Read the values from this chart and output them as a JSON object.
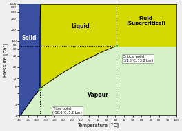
{
  "title": "",
  "xlabel": "Temperature [°C]",
  "ylabel": "Pressure [bar]",
  "xlim": [
    -80,
    100
  ],
  "ylim_log": [
    1,
    1000
  ],
  "xticks": [
    -80,
    -70,
    -60,
    -50,
    -40,
    -30,
    -20,
    -10,
    0,
    10,
    20,
    30,
    40,
    50,
    60,
    70,
    80,
    90,
    100
  ],
  "yticks": [
    1,
    2,
    4,
    6,
    8,
    10,
    20,
    40,
    60,
    80,
    100,
    200,
    400,
    600,
    800,
    1000
  ],
  "ytick_labels": [
    "1",
    "2",
    "",
    "6",
    "",
    "10",
    "20",
    "40",
    "60",
    "80",
    "100",
    "200",
    "400",
    "600",
    "800",
    "1000"
  ],
  "triple_point": [
    -56.6,
    5.2
  ],
  "critical_point": [
    31.0,
    73.8
  ],
  "color_solid": "#3a4fa0",
  "color_liquid": "#d4d900",
  "color_vapour": "#d6f0c8",
  "color_point": "#5ab52a",
  "bg_color": "#f0f0f0"
}
